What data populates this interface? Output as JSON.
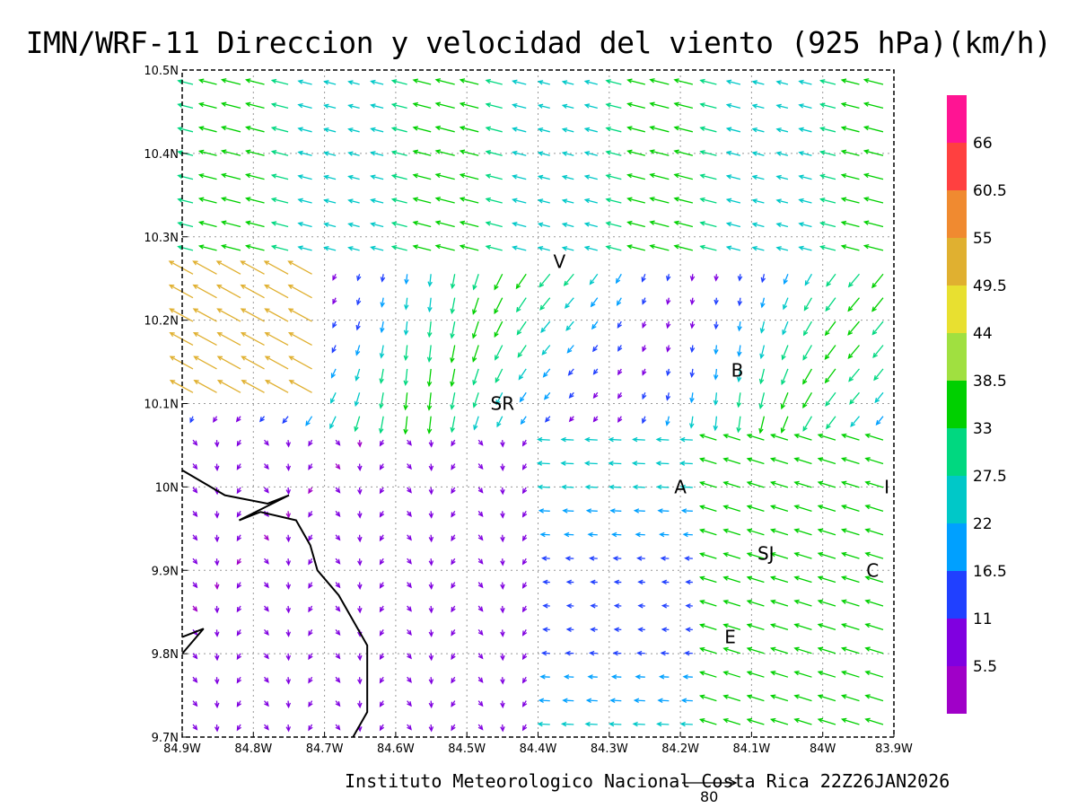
{
  "title": "IMN/WRF-11 Direccion y velocidad del viento (925 hPa)(km/h)",
  "credit": "Instituto Meteorologico Nacional Costa Rica 22Z26JAN2026",
  "reference_vector": {
    "label": "80",
    "speed_kmh": 80
  },
  "map": {
    "lon_range": [
      -84.9,
      -83.9
    ],
    "lat_range": [
      9.7,
      10.5
    ],
    "x_tick_labels": [
      "84.9W",
      "84.8W",
      "84.7W",
      "84.6W",
      "84.5W",
      "84.4W",
      "84.3W",
      "84.2W",
      "84.1W",
      "84W",
      "83.9W"
    ],
    "y_tick_labels": [
      "9.7N",
      "9.8N",
      "9.9N",
      "10N",
      "10.1N",
      "10.2N",
      "10.3N",
      "10.4N",
      "10.5N"
    ],
    "grid": "dotted",
    "coastline": [
      [
        -84.9,
        10.02
      ],
      [
        -84.84,
        9.99
      ],
      [
        -84.78,
        9.98
      ],
      [
        -84.75,
        9.99
      ],
      [
        -84.82,
        9.96
      ],
      [
        -84.79,
        9.97
      ],
      [
        -84.74,
        9.96
      ],
      [
        -84.72,
        9.93
      ],
      [
        -84.71,
        9.9
      ],
      [
        -84.68,
        9.87
      ],
      [
        -84.66,
        9.84
      ],
      [
        -84.64,
        9.81
      ],
      [
        -84.64,
        9.78
      ],
      [
        -84.64,
        9.73
      ],
      [
        -84.66,
        9.7
      ]
    ],
    "coastline_south": [
      [
        -84.9,
        9.8
      ],
      [
        -84.87,
        9.83
      ],
      [
        -84.9,
        9.82
      ]
    ],
    "cities": [
      {
        "label": "V",
        "lon": -84.37,
        "lat": 10.27
      },
      {
        "label": "SR",
        "lon": -84.45,
        "lat": 10.1
      },
      {
        "label": "B",
        "lon": -84.12,
        "lat": 10.14
      },
      {
        "label": "A",
        "lon": -84.2,
        "lat": 10.0
      },
      {
        "label": "I",
        "lon": -83.91,
        "lat": 10.0
      },
      {
        "label": "SJ",
        "lon": -84.08,
        "lat": 9.92
      },
      {
        "label": "C",
        "lon": -83.93,
        "lat": 9.9
      },
      {
        "label": "E",
        "lon": -84.13,
        "lat": 9.82
      }
    ]
  },
  "colorbar": {
    "labels": [
      "66",
      "60.5",
      "55",
      "49.5",
      "44",
      "38.5",
      "33",
      "27.5",
      "22",
      "16.5",
      "11",
      "5.5"
    ],
    "colors": [
      "#ff1493",
      "#ff4040",
      "#f08a30",
      "#e0b030",
      "#e8e030",
      "#a0e040",
      "#00d000",
      "#00d880",
      "#00c8c8",
      "#00a0ff",
      "#2040ff",
      "#8000e0",
      "#a000c8"
    ]
  }
}
